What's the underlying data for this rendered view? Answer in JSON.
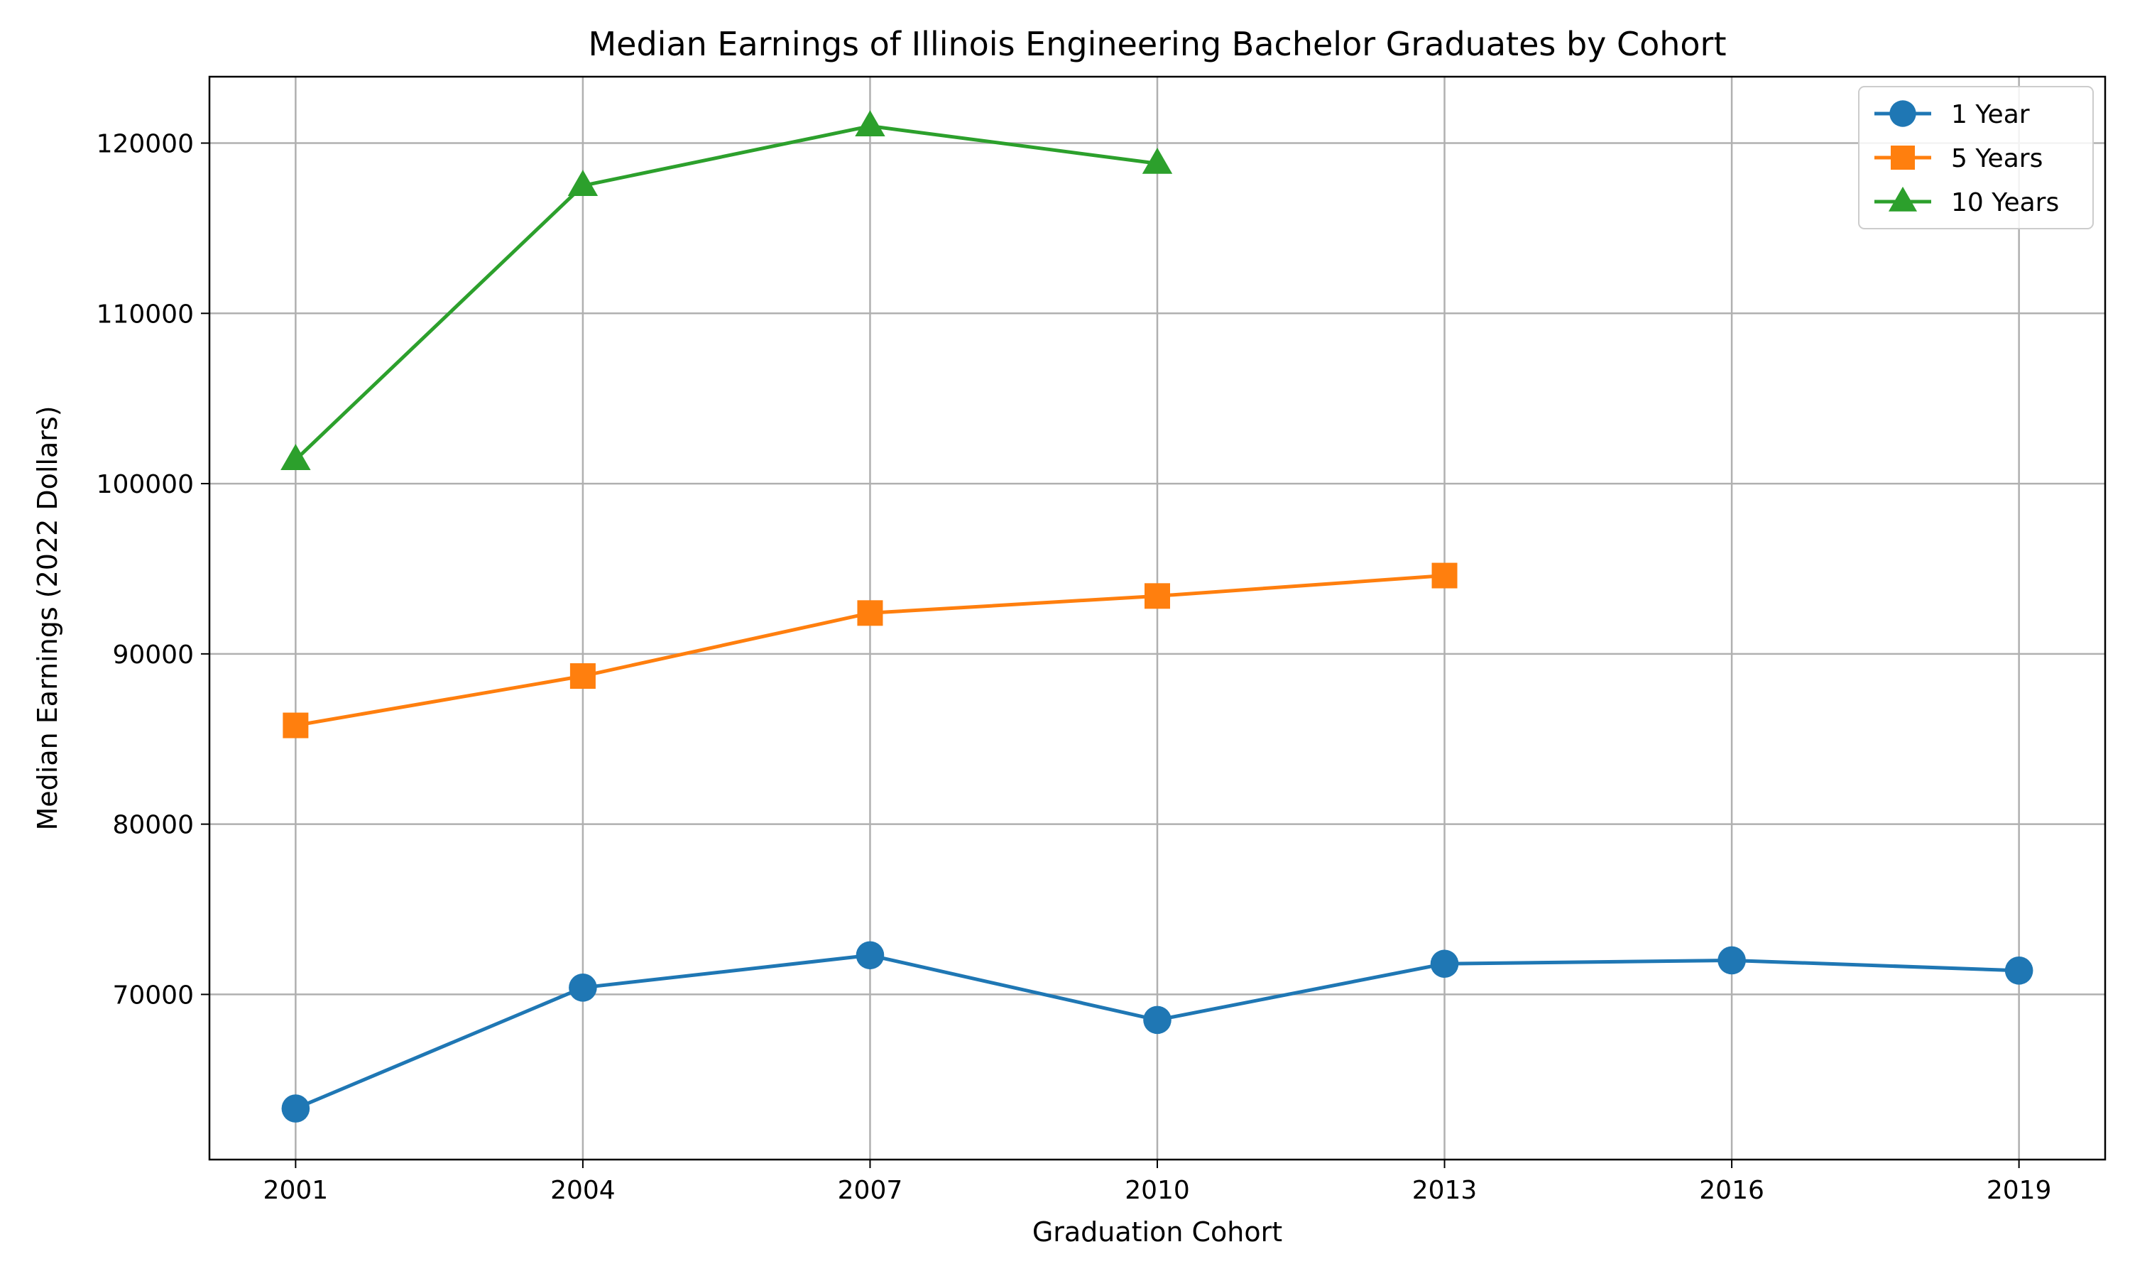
{
  "chart_data": {
    "type": "line",
    "title": "Median Earnings of Illinois Engineering Bachelor Graduates by Cohort",
    "xlabel": "Graduation Cohort",
    "ylabel": "Median Earnings (2022 Dollars)",
    "x": [
      2001,
      2004,
      2007,
      2010,
      2013,
      2016,
      2019
    ],
    "x_tick_labels": [
      "2001",
      "2004",
      "2007",
      "2010",
      "2013",
      "2016",
      "2019"
    ],
    "y_ticks": [
      70000,
      80000,
      90000,
      100000,
      110000,
      120000
    ],
    "y_tick_labels": [
      "70000",
      "80000",
      "90000",
      "100000",
      "110000",
      "120000"
    ],
    "xlim": [
      2000.1,
      2019.9
    ],
    "ylim": [
      60300,
      123900
    ],
    "grid": true,
    "legend_position": "top-right",
    "series": [
      {
        "name": "1 Year",
        "color": "#1f77b4",
        "marker": "circle",
        "x": [
          2001,
          2004,
          2007,
          2010,
          2013,
          2016,
          2019
        ],
        "values": [
          63300,
          70400,
          72300,
          68500,
          71800,
          72000,
          71400
        ]
      },
      {
        "name": "5 Years",
        "color": "#ff7f0e",
        "marker": "square",
        "x": [
          2001,
          2004,
          2007,
          2010,
          2013
        ],
        "values": [
          85800,
          88700,
          92400,
          93400,
          94600
        ]
      },
      {
        "name": "10 Years",
        "color": "#2ca02c",
        "marker": "triangle",
        "x": [
          2001,
          2004,
          2007,
          2010
        ],
        "values": [
          101400,
          117500,
          121000,
          118800
        ]
      }
    ]
  }
}
